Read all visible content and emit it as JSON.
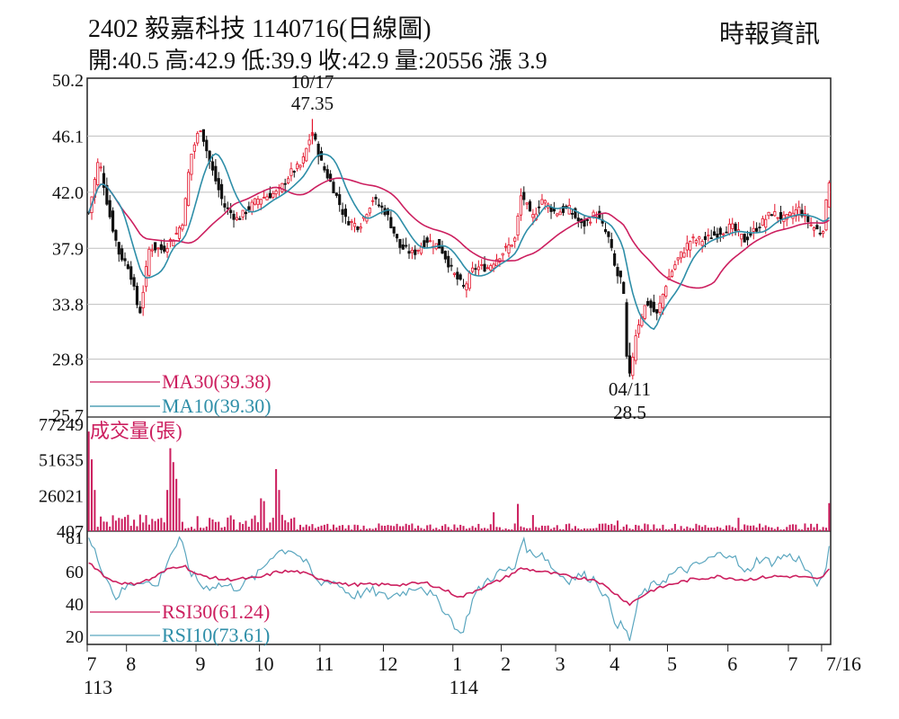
{
  "header": {
    "title": "2402  毅嘉科技 1140716(日線圖)",
    "quote": "開:40.5 高:42.9 低:39.9 收:42.9 量:20556 漲 3.9",
    "source": "時報資訊"
  },
  "colors": {
    "up": "#e3132a",
    "down": "#111111",
    "ma30": "#cc1f5f",
    "ma10": "#2e8ea8",
    "volume": "#cc1f5f",
    "rsi30": "#cc1f5f",
    "rsi10": "#5aa6bf",
    "grid": "#bfbfbf",
    "frame": "#222222"
  },
  "chart_data": {
    "type": "candlestick",
    "price": {
      "yticks": [
        "50.2",
        "46.1",
        "42.0",
        "37.9",
        "33.8",
        "29.8",
        "25.7"
      ],
      "ylim": [
        25.7,
        50.2
      ],
      "high_annotation": {
        "date": "10/17",
        "value": "47.35"
      },
      "low_annotation": {
        "date": "04/11",
        "value": "28.5"
      },
      "legend": [
        {
          "label": "MA30(39.38)",
          "key": "ma30"
        },
        {
          "label": "MA10(39.30)",
          "key": "ma10"
        }
      ],
      "keypoints": [
        [
          0,
          40.5
        ],
        [
          3,
          44.5
        ],
        [
          6,
          40.5
        ],
        [
          9,
          37.5
        ],
        [
          12,
          36.5
        ],
        [
          15,
          33.0
        ],
        [
          18,
          38.0
        ],
        [
          22,
          37.8
        ],
        [
          26,
          39.0
        ],
        [
          28,
          40.0
        ],
        [
          30,
          44.5
        ],
        [
          33,
          46.8
        ],
        [
          36,
          44.0
        ],
        [
          40,
          41.0
        ],
        [
          44,
          40.0
        ],
        [
          50,
          41.5
        ],
        [
          56,
          42.0
        ],
        [
          60,
          43.5
        ],
        [
          63,
          44.0
        ],
        [
          66,
          46.5
        ],
        [
          69,
          44.0
        ],
        [
          72,
          42.5
        ],
        [
          76,
          40.0
        ],
        [
          80,
          39.5
        ],
        [
          84,
          41.5
        ],
        [
          88,
          40.5
        ],
        [
          92,
          38.0
        ],
        [
          96,
          37.5
        ],
        [
          100,
          38.5
        ],
        [
          104,
          38.0
        ],
        [
          108,
          36.0
        ],
        [
          111,
          35.0
        ],
        [
          114,
          36.5
        ],
        [
          118,
          36.5
        ],
        [
          122,
          37.5
        ],
        [
          126,
          38.5
        ],
        [
          128,
          42.0
        ],
        [
          131,
          40.0
        ],
        [
          134,
          41.5
        ],
        [
          138,
          40.5
        ],
        [
          142,
          40.8
        ],
        [
          146,
          39.5
        ],
        [
          150,
          40.5
        ],
        [
          154,
          38.5
        ],
        [
          156,
          36.0
        ],
        [
          158,
          35.5
        ],
        [
          159,
          30.0
        ],
        [
          160,
          28.5
        ],
        [
          162,
          32.0
        ],
        [
          165,
          34.0
        ],
        [
          168,
          33.0
        ],
        [
          171,
          35.5
        ],
        [
          174,
          37.0
        ],
        [
          178,
          38.5
        ],
        [
          182,
          38.5
        ],
        [
          186,
          39.0
        ],
        [
          190,
          39.5
        ],
        [
          194,
          38.5
        ],
        [
          198,
          39.5
        ],
        [
          202,
          40.5
        ],
        [
          206,
          40.0
        ],
        [
          210,
          40.8
        ],
        [
          214,
          39.5
        ],
        [
          217,
          39.0
        ],
        [
          219,
          42.9
        ]
      ],
      "ma30_last": 39.38,
      "ma10_last": 39.3
    },
    "volume": {
      "title": "成交量(張)",
      "yticks": [
        "77249",
        "51635",
        "26021",
        "407"
      ],
      "ylim": [
        407,
        77249
      ],
      "spikes": [
        [
          0,
          72000
        ],
        [
          1,
          52000
        ],
        [
          2,
          30000
        ],
        [
          23,
          30000
        ],
        [
          24,
          60000
        ],
        [
          25,
          50000
        ],
        [
          26,
          38000
        ],
        [
          27,
          24000
        ],
        [
          51,
          24000
        ],
        [
          52,
          22000
        ],
        [
          55,
          45000
        ],
        [
          56,
          30000
        ],
        [
          120,
          14000
        ],
        [
          127,
          20000
        ],
        [
          131,
          12000
        ],
        [
          156,
          8000
        ],
        [
          192,
          10000
        ],
        [
          219,
          20556
        ]
      ]
    },
    "rsi": {
      "yticks": [
        "81",
        "60",
        "40",
        "20"
      ],
      "ylim": [
        15,
        85
      ],
      "legend": [
        {
          "label": "RSI30(61.24)",
          "key": "rsi30"
        },
        {
          "label": "RSI10(73.61)",
          "key": "rsi10"
        }
      ],
      "rsi10_keypoints": [
        [
          0,
          80
        ],
        [
          4,
          62
        ],
        [
          8,
          44
        ],
        [
          12,
          52
        ],
        [
          16,
          55
        ],
        [
          20,
          50
        ],
        [
          24,
          70
        ],
        [
          27,
          80
        ],
        [
          30,
          60
        ],
        [
          34,
          50
        ],
        [
          38,
          52
        ],
        [
          44,
          50
        ],
        [
          50,
          58
        ],
        [
          55,
          72
        ],
        [
          60,
          74
        ],
        [
          64,
          66
        ],
        [
          68,
          52
        ],
        [
          72,
          55
        ],
        [
          78,
          45
        ],
        [
          84,
          48
        ],
        [
          88,
          44
        ],
        [
          94,
          48
        ],
        [
          98,
          52
        ],
        [
          104,
          40
        ],
        [
          108,
          28
        ],
        [
          110,
          20
        ],
        [
          114,
          45
        ],
        [
          118,
          55
        ],
        [
          122,
          60
        ],
        [
          126,
          62
        ],
        [
          128,
          80
        ],
        [
          131,
          70
        ],
        [
          134,
          72
        ],
        [
          138,
          60
        ],
        [
          142,
          55
        ],
        [
          146,
          58
        ],
        [
          150,
          55
        ],
        [
          154,
          40
        ],
        [
          156,
          28
        ],
        [
          158,
          26
        ],
        [
          160,
          18
        ],
        [
          163,
          45
        ],
        [
          166,
          50
        ],
        [
          170,
          55
        ],
        [
          174,
          60
        ],
        [
          178,
          62
        ],
        [
          182,
          66
        ],
        [
          186,
          70
        ],
        [
          190,
          72
        ],
        [
          194,
          58
        ],
        [
          198,
          68
        ],
        [
          202,
          66
        ],
        [
          206,
          70
        ],
        [
          210,
          68
        ],
        [
          214,
          55
        ],
        [
          217,
          52
        ],
        [
          219,
          74
        ]
      ],
      "rsi30_keypoints": [
        [
          0,
          66
        ],
        [
          6,
          55
        ],
        [
          12,
          52
        ],
        [
          18,
          55
        ],
        [
          24,
          62
        ],
        [
          28,
          64
        ],
        [
          32,
          58
        ],
        [
          40,
          55
        ],
        [
          50,
          56
        ],
        [
          56,
          60
        ],
        [
          62,
          60
        ],
        [
          68,
          56
        ],
        [
          76,
          52
        ],
        [
          84,
          52
        ],
        [
          92,
          52
        ],
        [
          100,
          53
        ],
        [
          106,
          48
        ],
        [
          110,
          44
        ],
        [
          116,
          50
        ],
        [
          122,
          55
        ],
        [
          128,
          62
        ],
        [
          134,
          60
        ],
        [
          142,
          57
        ],
        [
          150,
          55
        ],
        [
          156,
          46
        ],
        [
          160,
          40
        ],
        [
          166,
          48
        ],
        [
          172,
          52
        ],
        [
          178,
          55
        ],
        [
          186,
          57
        ],
        [
          194,
          55
        ],
        [
          202,
          57
        ],
        [
          210,
          57
        ],
        [
          216,
          55
        ],
        [
          219,
          61
        ]
      ]
    },
    "x_axis": {
      "labels": [
        {
          "text": "7",
          "i": 0
        },
        {
          "text": "8",
          "i": 13
        },
        {
          "text": "9",
          "i": 36
        },
        {
          "text": "10",
          "i": 57
        },
        {
          "text": "11",
          "i": 77
        },
        {
          "text": "12",
          "i": 98
        },
        {
          "text": "1",
          "i": 121
        },
        {
          "text": "2",
          "i": 137
        },
        {
          "text": "3",
          "i": 155
        },
        {
          "text": "4",
          "i": 173
        },
        {
          "text": "5",
          "i": 192
        },
        {
          "text": "6",
          "i": 212
        },
        {
          "text": "7",
          "i": 232
        },
        {
          "text": "7/16",
          "i": 243
        }
      ],
      "year_labels": [
        {
          "text": "113",
          "i": 0
        },
        {
          "text": "114",
          "i": 121
        }
      ],
      "count": 246
    }
  }
}
